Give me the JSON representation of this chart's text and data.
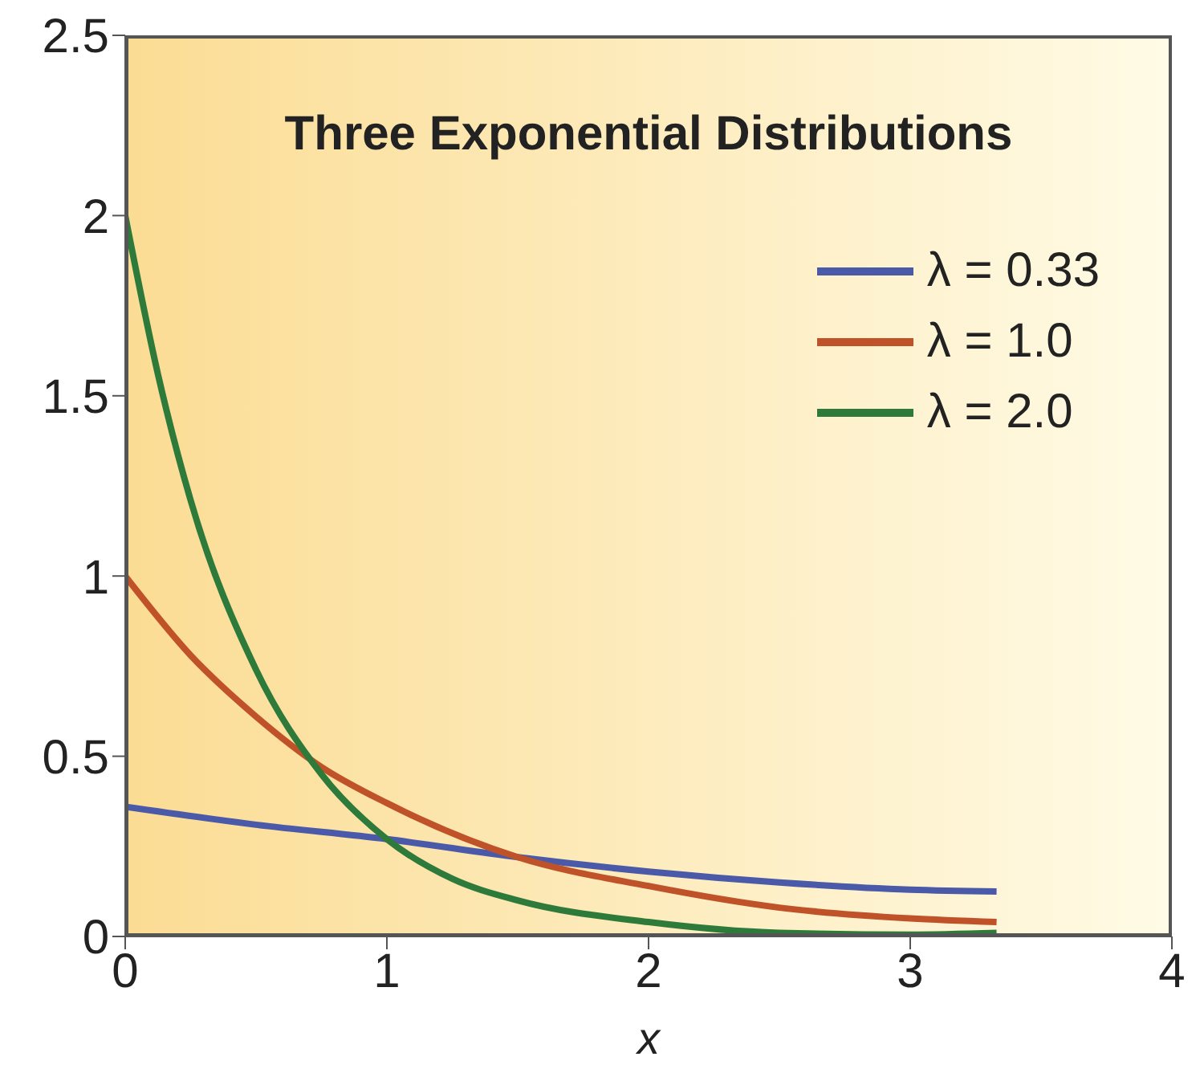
{
  "chart_data": {
    "type": "line",
    "title": "Three Exponential Distributions",
    "xlabel": "x",
    "xlim": [
      0,
      4
    ],
    "xticks": [
      0,
      1,
      2,
      3,
      4
    ],
    "ylim": [
      0,
      2.5
    ],
    "yticks": [
      0,
      0.5,
      1,
      1.5,
      2,
      2.5
    ],
    "legend": "top right",
    "grid": false,
    "marker": "none",
    "line_style": "solid",
    "series": [
      {
        "name": "λ = 0.33",
        "color": "#4a5aa8",
        "x": [
          0,
          0.5,
          1,
          1.5,
          2,
          2.5,
          3,
          3.33
        ],
        "values": [
          0.36,
          0.31,
          0.27,
          0.22,
          0.18,
          0.15,
          0.13,
          0.125
        ]
      },
      {
        "name": "λ = 1.0",
        "color": "#c0522a",
        "x": [
          0,
          0.25,
          0.5,
          0.75,
          1,
          1.5,
          2,
          2.5,
          3,
          3.33
        ],
        "values": [
          1.0,
          0.78,
          0.61,
          0.47,
          0.37,
          0.22,
          0.14,
          0.08,
          0.05,
          0.04
        ]
      },
      {
        "name": "λ = 2.0",
        "color": "#2e7a3a",
        "x": [
          0,
          0.125,
          0.25,
          0.5,
          0.75,
          1,
          1.25,
          1.5,
          2,
          2.5,
          3,
          3.33
        ],
        "values": [
          2.0,
          1.56,
          1.21,
          0.74,
          0.45,
          0.27,
          0.16,
          0.1,
          0.04,
          0.01,
          0.005,
          0.01
        ]
      }
    ]
  }
}
